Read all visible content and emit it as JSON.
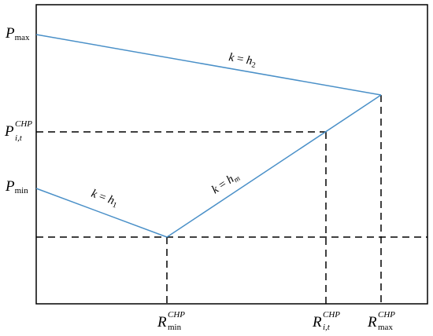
{
  "diagram": {
    "y_labels": {
      "pmax": {
        "main": "P",
        "sub": "max"
      },
      "pit": {
        "main": "P",
        "sup": "CHP",
        "sub": "i,t"
      },
      "pmin": {
        "main": "P",
        "sub": "min"
      }
    },
    "x_labels": {
      "rmin": {
        "main": "R",
        "sup": "CHP",
        "sub": "min"
      },
      "rit": {
        "main": "R",
        "sup": "CHP",
        "sub": "i,t"
      },
      "rmax": {
        "main": "R",
        "sup": "CHP",
        "sub": "max"
      }
    },
    "slopes": {
      "h2": {
        "lhs": "k",
        "eq": " = ",
        "h": "h",
        "sub": "2"
      },
      "hm": {
        "lhs": "k",
        "eq": " = ",
        "h": "h",
        "sub": "m"
      },
      "h1": {
        "lhs": "k",
        "eq": " = ",
        "h": "h",
        "sub": "1"
      }
    },
    "colors": {
      "line": "#4a90c8",
      "axis": "#000000",
      "dash": "#000000"
    }
  }
}
